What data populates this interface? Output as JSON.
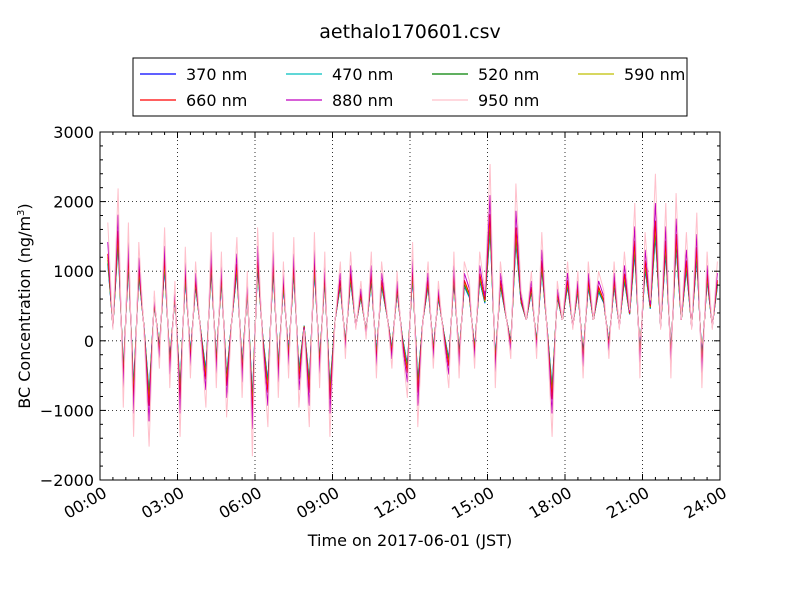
{
  "chart_data": {
    "type": "line",
    "title": "aethalo170601.csv",
    "xlabel": "Time on 2017-06-01 (JST)",
    "ylabel": "BC Concentration (ng/m",
    "ylabel_superscript": "3",
    "ylabel_suffix": ")",
    "xlim": [
      0,
      24
    ],
    "ylim": [
      -2000,
      3000
    ],
    "grid": true,
    "legend_position": "top-center",
    "x_ticks": [
      0,
      3,
      6,
      9,
      12,
      15,
      18,
      21,
      24
    ],
    "x_tick_labels": [
      "00:00",
      "03:00",
      "06:00",
      "09:00",
      "12:00",
      "15:00",
      "18:00",
      "21:00",
      "24:00"
    ],
    "y_ticks": [
      -2000,
      -1000,
      0,
      1000,
      2000,
      3000
    ],
    "y_tick_labels": [
      "−2000",
      "−1000",
      "0",
      "1000",
      "2000",
      "3000"
    ],
    "series": [
      {
        "name": "370 nm",
        "color": "#0000ff",
        "scale": 0.8
      },
      {
        "name": "470 nm",
        "color": "#00bfbf",
        "scale": 0.82
      },
      {
        "name": "520 nm",
        "color": "#008000",
        "scale": 0.86
      },
      {
        "name": "590 nm",
        "color": "#bfbf00",
        "scale": 0.9
      },
      {
        "name": "660 nm",
        "color": "#ff0000",
        "scale": 0.95
      },
      {
        "name": "880 nm",
        "color": "#bf00bf",
        "scale": 1.12
      },
      {
        "name": "950 nm",
        "color": "#ffc0cb",
        "scale": 1.4
      }
    ],
    "x": [
      0.3,
      0.5,
      0.7,
      0.9,
      1.1,
      1.3,
      1.5,
      1.7,
      1.9,
      2.1,
      2.3,
      2.5,
      2.7,
      2.9,
      3.1,
      3.3,
      3.5,
      3.7,
      3.9,
      4.1,
      4.3,
      4.5,
      4.7,
      4.9,
      5.1,
      5.3,
      5.5,
      5.7,
      5.9,
      6.1,
      6.3,
      6.5,
      6.7,
      6.9,
      7.1,
      7.3,
      7.5,
      7.7,
      7.9,
      8.1,
      8.3,
      8.5,
      8.7,
      8.9,
      9.1,
      9.3,
      9.5,
      9.7,
      9.9,
      10.1,
      10.3,
      10.5,
      10.7,
      10.9,
      11.1,
      11.3,
      11.5,
      11.7,
      11.9,
      12.1,
      12.3,
      12.5,
      12.7,
      12.9,
      13.1,
      13.3,
      13.5,
      13.7,
      13.9,
      14.1,
      14.3,
      14.5,
      14.7,
      14.9,
      15.1,
      15.3,
      15.5,
      15.7,
      15.9,
      16.1,
      16.3,
      16.5,
      16.7,
      16.9,
      17.1,
      17.3,
      17.5,
      17.7,
      17.9,
      18.1,
      18.3,
      18.5,
      18.7,
      18.9,
      19.1,
      19.3,
      19.5,
      19.7,
      19.9,
      20.1,
      20.3,
      20.5,
      20.7,
      20.9,
      21.1,
      21.3,
      21.5,
      21.7,
      21.9,
      22.1,
      22.3,
      22.5,
      22.7,
      22.9,
      23.1,
      23.3,
      23.5,
      23.7,
      23.9
    ],
    "base_values": [
      1300,
      200,
      1650,
      -600,
      1300,
      -900,
      1100,
      200,
      -1000,
      600,
      -200,
      1250,
      -400,
      700,
      -900,
      1050,
      -300,
      900,
      100,
      -600,
      1200,
      -400,
      1000,
      -700,
      300,
      1150,
      -500,
      800,
      -1100,
      1250,
      0,
      -800,
      1200,
      -500,
      900,
      -300,
      1150,
      -600,
      200,
      -800,
      1200,
      -400,
      1000,
      -900,
      300,
      900,
      -100,
      1000,
      200,
      700,
      100,
      1000,
      -300,
      900,
      400,
      -200,
      800,
      0,
      -500,
      1100,
      -800,
      300,
      900,
      -200,
      700,
      100,
      -400,
      1000,
      -300,
      900,
      700,
      -200,
      1000,
      600,
      1900,
      -400,
      900,
      400,
      -100,
      1700,
      600,
      300,
      800,
      -100,
      1200,
      200,
      -900,
      700,
      300,
      900,
      200,
      800,
      -300,
      900,
      300,
      800,
      600,
      -100,
      900,
      200,
      1000,
      400,
      1500,
      -300,
      1200,
      500,
      1800,
      200,
      1500,
      -300,
      1600,
      300,
      1200,
      200,
      1400,
      -400,
      1000,
      200,
      900
    ]
  }
}
